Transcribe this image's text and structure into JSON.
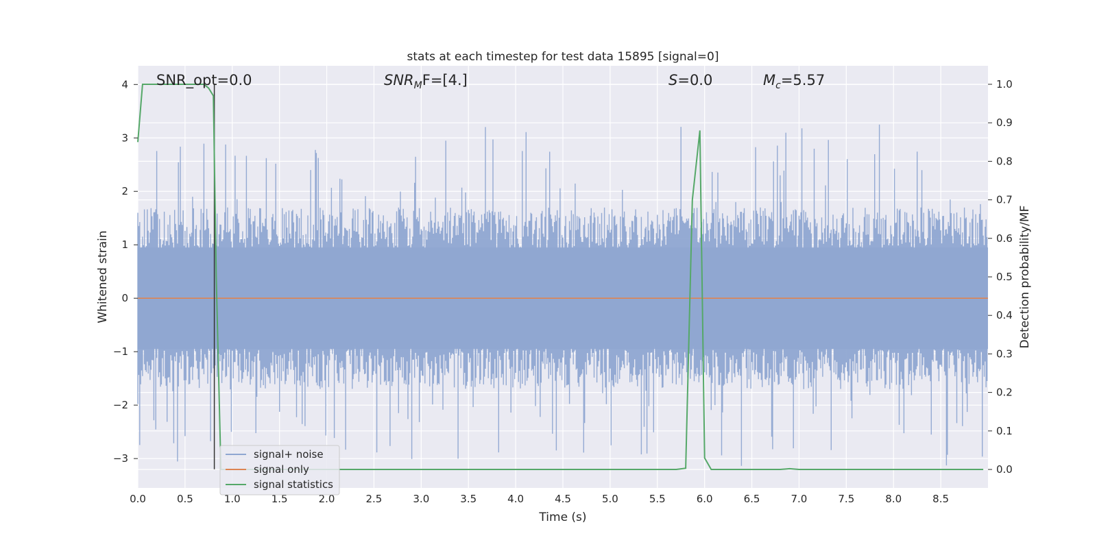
{
  "chart_data": {
    "type": "line",
    "title": "stats at each timestep for test data 15895 [signal=0]",
    "xlabel": "Time (s)",
    "ylabel": "Whitened strain",
    "y2label": "Detection probability/MF",
    "xlim": [
      0,
      9.0
    ],
    "ylim": [
      -3.55,
      4.35
    ],
    "y2lim": [
      -0.048,
      1.048
    ],
    "x_ticks": [
      "0.0",
      "0.5",
      "1.0",
      "1.5",
      "2.0",
      "2.5",
      "3.0",
      "3.5",
      "4.0",
      "4.5",
      "5.0",
      "5.5",
      "6.0",
      "6.5",
      "7.0",
      "7.5",
      "8.0",
      "8.5"
    ],
    "y_ticks": [
      "4",
      "3",
      "2",
      "1",
      "0",
      "−1",
      "−2",
      "−3"
    ],
    "y2_ticks": [
      "1.0",
      "0.9",
      "0.8",
      "0.7",
      "0.6",
      "0.5",
      "0.4",
      "0.3",
      "0.2",
      "0.1",
      "0.0"
    ],
    "grid": true,
    "legend_position": "lower-left",
    "annotations": {
      "snr_opt": "SNR_opt=0.0",
      "snr_mf_main": "SNR",
      "snr_mf_sub": "M",
      "snr_mf_tail": "F=[4.]",
      "s_main": "S",
      "s_tail": "=0.0",
      "mc_main": "M",
      "mc_sub": "c",
      "mc_tail": "=5.57"
    },
    "vline_x": 0.81,
    "noise_band": {
      "upper_typical": 1.7,
      "lower_typical": -1.7,
      "upper_extreme": 3.25,
      "lower_extreme": -3.15
    },
    "series": [
      {
        "name": "signal+ noise",
        "color": "#8fa6d1",
        "x_range": [
          0,
          8.99
        ],
        "description_level": "dense noise, whitened strain"
      },
      {
        "name": "signal only",
        "color": "#dd8452",
        "x": [
          0,
          9.0
        ],
        "y": [
          0,
          0
        ]
      },
      {
        "name": "signal statistics",
        "color": "#55a868",
        "axis": "right",
        "x": [
          0.0,
          0.05,
          0.1,
          0.15,
          0.5,
          0.7,
          0.75,
          0.8,
          0.83,
          0.88,
          0.95,
          1.0,
          5.7,
          5.8,
          5.87,
          5.95,
          6.0,
          6.07,
          6.8,
          6.9,
          7.0,
          8.95
        ],
        "y": [
          0.85,
          1.0,
          1.0,
          1.0,
          1.0,
          1.0,
          0.99,
          0.97,
          0.5,
          0.0,
          0.0,
          0.0,
          0.0,
          0.003,
          0.7,
          0.88,
          0.03,
          0.0,
          0.0,
          0.002,
          0.0,
          0.0
        ]
      }
    ]
  }
}
